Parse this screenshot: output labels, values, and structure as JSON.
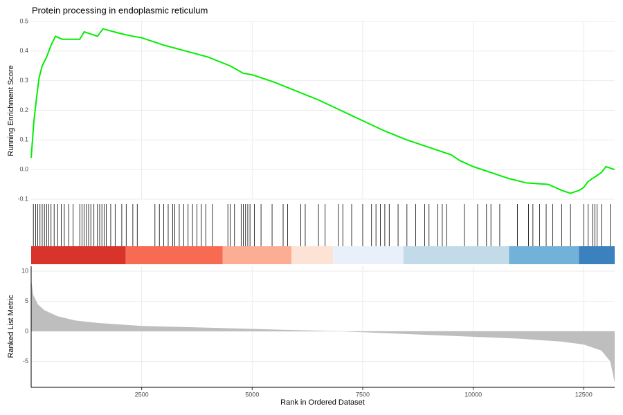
{
  "chart_data": [
    {
      "type": "line",
      "title": "Protein processing in endoplasmic reticulum",
      "y_label": "Running Enrichment Score",
      "x": [
        1,
        60,
        120,
        180,
        250,
        350,
        450,
        550,
        700,
        900,
        1100,
        1200,
        1500,
        1625,
        2000,
        2300,
        2500,
        3000,
        3500,
        4000,
        4500,
        4800,
        5000,
        5500,
        6000,
        6500,
        7000,
        7500,
        8000,
        8500,
        9000,
        9500,
        9700,
        10000,
        10400,
        10800,
        11200,
        11700,
        12000,
        12200,
        12400,
        12500,
        12600,
        12800,
        12900,
        13000,
        13200
      ],
      "series": [
        {
          "color": "#00ee00",
          "values": [
            0.04,
            0.16,
            0.24,
            0.31,
            0.35,
            0.38,
            0.42,
            0.45,
            0.44,
            0.44,
            0.44,
            0.465,
            0.45,
            0.475,
            0.46,
            0.45,
            0.445,
            0.42,
            0.4,
            0.38,
            0.35,
            0.325,
            0.32,
            0.295,
            0.265,
            0.235,
            0.2,
            0.165,
            0.13,
            0.1,
            0.075,
            0.05,
            0.03,
            0.01,
            -0.01,
            -0.03,
            -0.045,
            -0.05,
            -0.07,
            -0.08,
            -0.07,
            -0.06,
            -0.04,
            -0.02,
            -0.01,
            0.01,
            0.0
          ]
        }
      ],
      "xlim": [
        0,
        13200
      ],
      "ylim": [
        -0.1,
        0.5
      ],
      "yticks": [
        -0.1,
        {
          "value": 0,
          "label": "0.0"
        },
        0.1,
        0.2,
        0.3,
        0.4,
        0.5
      ],
      "grid": true
    },
    {
      "type": "rug",
      "color": "#000000",
      "x": [
        50,
        100,
        150,
        200,
        250,
        300,
        350,
        400,
        450,
        520,
        600,
        680,
        750,
        850,
        950,
        1100,
        1150,
        1200,
        1250,
        1300,
        1350,
        1420,
        1500,
        1550,
        1600,
        1650,
        1700,
        1800,
        1900,
        2050,
        2150,
        2300,
        2400,
        2800,
        2900,
        3000,
        3100,
        3200,
        3250,
        3350,
        3450,
        3550,
        3650,
        3750,
        3850,
        3950,
        4100,
        4450,
        4500,
        4600,
        4750,
        4800,
        4850,
        4900,
        4950,
        5050,
        5200,
        5450,
        5700,
        5800,
        6100,
        6200,
        6500,
        6650,
        6950,
        7050,
        7250,
        7500,
        7700,
        7800,
        7900,
        8000,
        8100,
        8300,
        8500,
        8700,
        8900,
        9000,
        9200,
        9300,
        9400,
        9800,
        10100,
        10300,
        10400,
        10600,
        11000,
        11250,
        11350,
        11500,
        11650,
        11800,
        12000,
        12200,
        12500,
        12600,
        12700,
        12750,
        12800,
        12900,
        13100
      ],
      "bands": [
        {
          "start": 0,
          "end": 2140,
          "color": "#d9342b"
        },
        {
          "start": 2140,
          "end": 4330,
          "color": "#f76b52"
        },
        {
          "start": 4330,
          "end": 5890,
          "color": "#fcae94"
        },
        {
          "start": 5890,
          "end": 6830,
          "color": "#fde2d6"
        },
        {
          "start": 6830,
          "end": 8420,
          "color": "#eaf0fa"
        },
        {
          "start": 8420,
          "end": 10810,
          "color": "#c3dbe9"
        },
        {
          "start": 10810,
          "end": 12390,
          "color": "#72b1d8"
        },
        {
          "start": 12390,
          "end": 13200,
          "color": "#3a81bd"
        }
      ],
      "xlim": [
        0,
        13200
      ]
    },
    {
      "type": "area",
      "x_label": "Rank in Ordered Dataset",
      "y_label": "Ranked List Metric",
      "color": "#bebebe",
      "x": [
        1,
        50,
        150,
        300,
        600,
        1000,
        1500,
        2500,
        4000,
        5000,
        6500,
        7000,
        8000,
        9000,
        10000,
        11000,
        12000,
        12500,
        12900,
        13100,
        13200
      ],
      "values": [
        8.5,
        6,
        4.5,
        3.5,
        2.5,
        1.8,
        1.4,
        0.9,
        0.6,
        0.4,
        0.1,
        0,
        -0.3,
        -0.6,
        -0.9,
        -1.2,
        -1.7,
        -2.2,
        -3.2,
        -5,
        -8.5
      ],
      "xlim": [
        0,
        13200
      ],
      "ylim": [
        -9.3,
        10.8
      ],
      "yticks": [
        -5,
        0,
        5,
        10
      ],
      "xticks": [
        2500,
        5000,
        7500,
        10000,
        12500
      ],
      "grid": true
    }
  ]
}
